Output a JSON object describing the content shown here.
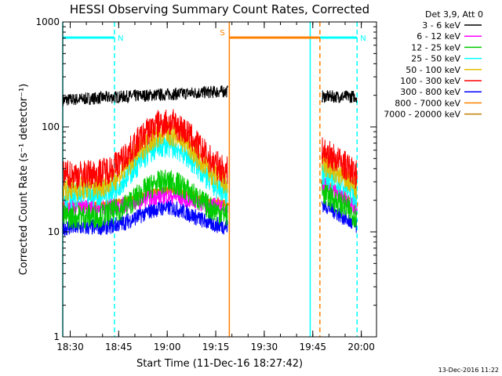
{
  "chart_data": {
    "type": "line",
    "title": "HESSI Observing Summary Count Rates, Corrected",
    "xlabel": "Start Time (11-Dec-16 18:27:42)",
    "ylabel": "Corrected Count Rate (s⁻¹ detector⁻¹)",
    "y_scale": "log",
    "ylim": [
      1,
      1000
    ],
    "xlim_minutes_since_18_27_42": [
      0,
      97
    ],
    "x_tick_labels": [
      "18:30",
      "18:45",
      "19:00",
      "19:15",
      "19:30",
      "19:45",
      "20:00"
    ],
    "x_tick_minutes": [
      2.3,
      17.3,
      32.3,
      47.3,
      62.3,
      77.3,
      92.3
    ],
    "y_tick_labels": [
      "1",
      "10",
      "100",
      "1000"
    ],
    "y_tick_values": [
      1,
      10,
      100,
      1000
    ],
    "legend_title": "Det 3,9, Att 0",
    "legend_position": "top-right, outside plot",
    "series": [
      {
        "name": "3 - 6 keV",
        "color": "#000000",
        "base": 180,
        "peak": 0,
        "noise": 0.06
      },
      {
        "name": "6 - 12 keV",
        "color": "#ff00ff",
        "base": 17,
        "peak": 5,
        "noise": 0.08
      },
      {
        "name": "12 - 25 keV",
        "color": "#00cc00",
        "base": 14,
        "peak": 16,
        "noise": 0.12
      },
      {
        "name": "25 - 50 keV",
        "color": "#00ffff",
        "base": 22,
        "peak": 45,
        "noise": 0.12
      },
      {
        "name": "50 - 100 keV",
        "color": "#e0c000",
        "base": 26,
        "peak": 60,
        "noise": 0.12
      },
      {
        "name": "100 - 300 keV",
        "color": "#ff0000",
        "base": 35,
        "peak": 75,
        "noise": 0.14
      },
      {
        "name": "300 - 800 keV",
        "color": "#0000ff",
        "base": 11,
        "peak": 6,
        "noise": 0.08
      },
      {
        "name": "800 - 7000 keV",
        "color": "#ff8000",
        "base": 18,
        "peak": 7,
        "noise": 0.03
      },
      {
        "name": "7000 - 20000 keV",
        "color": "#c08000",
        "base": 0,
        "peak": 0,
        "noise": 0
      }
    ],
    "data_intervals_minutes": [
      [
        0,
        51
      ],
      [
        80,
        91
      ]
    ],
    "annotations": [
      {
        "label": "N",
        "color": "#00ffff",
        "type": "night",
        "range_minutes": [
          0,
          16
        ]
      },
      {
        "label": "N",
        "color": "#00ffff",
        "type": "night",
        "range_minutes": [
          76.5,
          91
        ]
      },
      {
        "label": "S",
        "color": "#ff8000",
        "type": "saa",
        "range_minutes": [
          51.5,
          79.5
        ]
      }
    ],
    "footer_date": "13-Dec-2016 11:22"
  }
}
